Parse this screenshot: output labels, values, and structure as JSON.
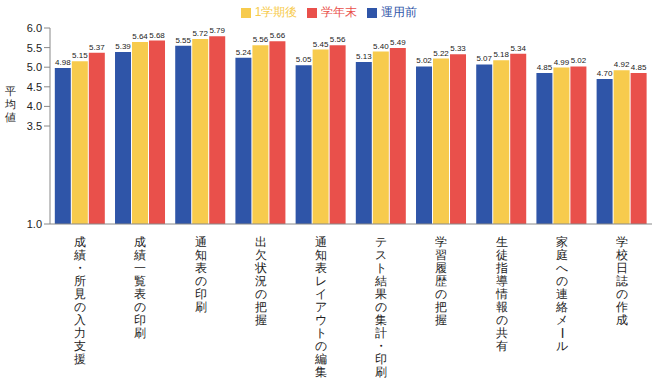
{
  "chart_data": {
    "type": "bar",
    "y_label": "平均値",
    "categories": [
      "成績・所見の入力支援",
      "成績一覧表の印刷",
      "通知表の印刷",
      "出欠状況の把握",
      "通知表レイアウトの編集",
      "テスト結果の集計・印刷",
      "学習履歴の把握",
      "生徒指導情報の共有",
      "家庭への連絡メール",
      "学校日誌の作成"
    ],
    "series": [
      {
        "name": "運用前",
        "color": "#2f55a8",
        "values": [
          4.98,
          5.39,
          5.55,
          5.24,
          5.05,
          5.13,
          5.02,
          5.07,
          4.85,
          4.7
        ],
        "value_labels": [
          "4.98",
          "5.39",
          "5.55",
          "5.24",
          "5.05",
          "5.13",
          "5.02",
          "5.07",
          "4.85",
          "4.70"
        ]
      },
      {
        "name": "1学期後",
        "color": "#f7cb4d",
        "values": [
          5.15,
          5.64,
          5.72,
          5.56,
          5.45,
          5.4,
          5.22,
          5.18,
          4.99,
          4.92
        ],
        "value_labels": [
          "5.15",
          "5.64",
          "5.72",
          "5.56",
          "5.45",
          "5.40",
          "5.22",
          "5.18",
          "4.99",
          "4.92"
        ]
      },
      {
        "name": "学年末",
        "color": "#e9504b",
        "values": [
          5.37,
          5.68,
          5.79,
          5.66,
          5.56,
          5.49,
          5.33,
          5.34,
          5.02,
          4.85
        ],
        "value_labels": [
          "5.37",
          "5.68",
          "5.79",
          "5.66",
          "5.56",
          "5.49",
          "5.33",
          "5.34",
          "5.02",
          "4.85"
        ]
      }
    ],
    "ylim": [
      1,
      6
    ],
    "yticks": [
      {
        "value": 1,
        "label": "1.0"
      },
      {
        "value": 3.5,
        "label": "3.5"
      },
      {
        "value": 4,
        "label": "4.0"
      },
      {
        "value": 4.5,
        "label": "4.5"
      },
      {
        "value": 5,
        "label": "5.0"
      },
      {
        "value": 5.5,
        "label": "5.5"
      },
      {
        "value": 6,
        "label": "6.0"
      }
    ],
    "data_labels": true,
    "legend": "top",
    "grid": false
  }
}
